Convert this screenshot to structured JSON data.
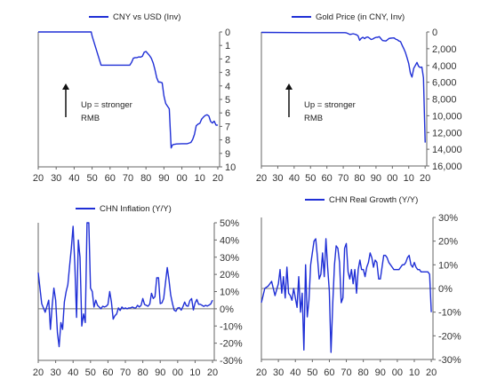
{
  "chart_data": [
    {
      "type": "line",
      "title": "",
      "legend": "CNY vs USD (Inv)",
      "legend_position": "top",
      "line_color": "#1f2fd6",
      "x_ticks": [
        "20",
        "30",
        "40",
        "50",
        "60",
        "70",
        "80",
        "90",
        "00",
        "10",
        "20"
      ],
      "y_ticks": [
        "0",
        "1",
        "2",
        "3",
        "4",
        "5",
        "6",
        "7",
        "8",
        "9",
        "10"
      ],
      "ylim": [
        0,
        10
      ],
      "y_inverted": true,
      "xlim": [
        1920,
        2021
      ],
      "grid": false,
      "annotation": {
        "line1": "Up = stronger",
        "line2": "RMB"
      },
      "x": [
        1920,
        1948,
        1949.5,
        1950,
        1955,
        1965,
        1971,
        1972,
        1973,
        1974,
        1975,
        1976,
        1977,
        1978,
        1979,
        1980,
        1981,
        1982,
        1983,
        1984,
        1985,
        1986,
        1987,
        1988,
        1989,
        1990,
        1991,
        1992,
        1993,
        1994,
        1994.5,
        1995,
        1997,
        2000,
        2003,
        2005,
        2006,
        2007,
        2008,
        2009,
        2010,
        2011,
        2012,
        2013,
        2014,
        2015,
        2016,
        2017,
        2018,
        2019,
        2020
      ],
      "values": [
        0,
        0,
        0,
        0.3,
        2.46,
        2.46,
        2.46,
        2.25,
        1.95,
        1.9,
        1.9,
        1.85,
        1.87,
        1.8,
        1.5,
        1.45,
        1.6,
        1.75,
        1.95,
        2.3,
        2.8,
        3.4,
        3.72,
        3.72,
        3.77,
        4.75,
        5.3,
        5.5,
        5.7,
        8.6,
        8.45,
        8.35,
        8.3,
        8.28,
        8.28,
        8.19,
        7.97,
        7.6,
        6.95,
        6.83,
        6.77,
        6.46,
        6.31,
        6.19,
        6.14,
        6.23,
        6.64,
        6.75,
        6.61,
        6.91,
        6.9
      ]
    },
    {
      "type": "line",
      "title": "",
      "legend": "Gold Price (in CNY, Inv)",
      "legend_position": "top",
      "line_color": "#1f2fd6",
      "x_ticks": [
        "20",
        "30",
        "40",
        "50",
        "60",
        "70",
        "80",
        "90",
        "00",
        "10",
        "20"
      ],
      "y_ticks": [
        "0",
        "2,000",
        "4,000",
        "6,000",
        "8,000",
        "10,000",
        "12,000",
        "14,000",
        "16,000"
      ],
      "ylim": [
        0,
        16000
      ],
      "y_inverted": true,
      "xlim": [
        1920,
        2021
      ],
      "grid": false,
      "annotation": {
        "line1": "Up = stronger",
        "line2": "RMB"
      },
      "x": [
        1920,
        1950,
        1965,
        1971,
        1972,
        1973,
        1974,
        1975,
        1976,
        1977,
        1978,
        1979,
        1980,
        1981,
        1982,
        1983,
        1984,
        1985,
        1986,
        1987,
        1988,
        1989,
        1990,
        1991,
        1992,
        1993,
        1994,
        1995,
        1996,
        1997,
        1998,
        1999,
        2000,
        2001,
        2002,
        2003,
        2004,
        2005,
        2006,
        2007,
        2008,
        2009,
        2010,
        2011,
        2012,
        2013,
        2014,
        2015,
        2016,
        2017,
        2018,
        2019,
        2020
      ],
      "values": [
        50,
        80,
        80,
        90,
        120,
        200,
        300,
        270,
        210,
        260,
        330,
        460,
        1000,
        760,
        640,
        790,
        650,
        600,
        730,
        900,
        850,
        720,
        650,
        640,
        560,
        800,
        1030,
        1050,
        1080,
        930,
        770,
        740,
        720,
        710,
        860,
        930,
        1080,
        1160,
        1610,
        2000,
        2480,
        3100,
        3770,
        4930,
        5380,
        4350,
        4010,
        3640,
        4100,
        4240,
        4200,
        5480,
        13200
      ]
    },
    {
      "type": "line",
      "title": "",
      "legend": "CHN Inflation (Y/Y)",
      "legend_position": "top",
      "line_color": "#1f2fd6",
      "x_ticks": [
        "20",
        "30",
        "40",
        "50",
        "60",
        "70",
        "80",
        "90",
        "00",
        "10",
        "20"
      ],
      "y_ticks": [
        "50%",
        "40%",
        "30%",
        "20%",
        "10%",
        "0%",
        "-10%",
        "-20%",
        "-30%"
      ],
      "ylim": [
        -30,
        50
      ],
      "xlim": [
        1920,
        2021
      ],
      "grid": false,
      "zero_line": true,
      "x": [
        1920,
        1922,
        1924,
        1926,
        1927,
        1928,
        1929,
        1930,
        1931,
        1932,
        1933,
        1934,
        1935,
        1936,
        1937,
        1938,
        1939,
        1940,
        1941,
        1942,
        1943,
        1944,
        1945,
        1946,
        1947,
        1948,
        1949,
        1950,
        1951,
        1952,
        1953,
        1954,
        1955,
        1956,
        1957,
        1958,
        1959,
        1960,
        1961,
        1962,
        1963,
        1964,
        1965,
        1966,
        1967,
        1968,
        1969,
        1970,
        1971,
        1972,
        1973,
        1974,
        1975,
        1976,
        1977,
        1978,
        1979,
        1980,
        1981,
        1982,
        1983,
        1984,
        1985,
        1986,
        1987,
        1988,
        1989,
        1990,
        1991,
        1992,
        1993,
        1994,
        1995,
        1996,
        1997,
        1998,
        1999,
        2000,
        2001,
        2002,
        2003,
        2004,
        2005,
        2006,
        2007,
        2008,
        2009,
        2010,
        2011,
        2012,
        2013,
        2014,
        2015,
        2016,
        2017,
        2018,
        2019,
        2020
      ],
      "values": [
        21,
        3,
        -2,
        5,
        -12,
        2,
        12,
        5,
        -14,
        -22,
        -8,
        -12,
        4,
        10,
        14,
        25,
        35,
        48,
        25,
        -5,
        40,
        30,
        -10,
        -3,
        -8,
        50,
        50,
        12,
        10,
        1,
        5,
        2,
        1,
        0,
        1.5,
        1,
        1.5,
        2.5,
        10,
        4,
        -6,
        -4,
        -3,
        0.5,
        -1,
        1,
        0,
        0.5,
        0,
        0.5,
        0.5,
        1,
        0.5,
        0.5,
        2,
        1,
        2,
        6,
        2.5,
        2,
        1.5,
        2.8,
        9,
        6,
        7,
        18,
        18,
        3,
        3.5,
        6,
        15,
        24,
        17,
        8,
        3,
        -0.8,
        -1.4,
        0.4,
        0.7,
        -0.8,
        1.2,
        3.9,
        1.8,
        1.5,
        4.8,
        5.9,
        -0.7,
        3.3,
        5.4,
        2.6,
        2.6,
        2,
        1.4,
        2,
        1.6,
        2.1,
        2.9,
        5
      ]
    },
    {
      "type": "line",
      "title": "",
      "legend": "CHN Real Growth (Y/Y)",
      "legend_position": "top",
      "line_color": "#1f2fd6",
      "x_ticks": [
        "20",
        "30",
        "40",
        "50",
        "60",
        "70",
        "80",
        "90",
        "00",
        "10",
        "20"
      ],
      "y_ticks": [
        "30%",
        "20%",
        "10%",
        "0%",
        "-10%",
        "-20%",
        "-30%"
      ],
      "ylim": [
        -30,
        30
      ],
      "xlim": [
        1920,
        2021
      ],
      "grid": false,
      "zero_line": true,
      "x": [
        1920,
        1922,
        1924,
        1926,
        1928,
        1930,
        1931,
        1932,
        1933,
        1934,
        1935,
        1936,
        1937,
        1938,
        1939,
        1940,
        1941,
        1942,
        1943,
        1944,
        1945,
        1946,
        1947,
        1948,
        1949,
        1950,
        1951,
        1952,
        1953,
        1954,
        1955,
        1956,
        1957,
        1958,
        1959,
        1960,
        1961,
        1962,
        1963,
        1964,
        1965,
        1966,
        1967,
        1968,
        1969,
        1970,
        1971,
        1972,
        1973,
        1974,
        1975,
        1976,
        1977,
        1978,
        1979,
        1980,
        1981,
        1982,
        1983,
        1984,
        1985,
        1986,
        1987,
        1988,
        1989,
        1990,
        1991,
        1992,
        1993,
        1994,
        1995,
        1996,
        1997,
        1998,
        1999,
        2000,
        2001,
        2002,
        2003,
        2004,
        2005,
        2006,
        2007,
        2008,
        2009,
        2010,
        2011,
        2012,
        2013,
        2014,
        2015,
        2016,
        2017,
        2018,
        2019,
        2020
      ],
      "values": [
        -6,
        0,
        1,
        3,
        -3,
        2,
        8,
        -2,
        5,
        -4,
        9,
        -2,
        -3,
        -5,
        0,
        -4,
        -8,
        5,
        -10,
        -2,
        -26,
        10,
        -12,
        -5,
        10,
        15,
        20,
        21,
        13,
        4,
        6,
        15,
        5,
        21,
        9,
        -1,
        -27,
        -6,
        10,
        18,
        17,
        11,
        -6,
        -4,
        17,
        19,
        7,
        4,
        8,
        2,
        8,
        -2,
        8,
        12,
        8,
        8,
        5,
        9,
        11,
        15,
        13,
        9,
        12,
        11,
        4,
        4,
        9,
        14,
        14,
        13,
        11,
        10,
        9,
        8,
        8,
        8,
        8,
        9,
        10,
        10,
        11,
        13,
        14,
        10,
        9,
        11,
        9,
        8,
        8,
        7,
        7,
        7,
        7,
        7,
        6,
        -10
      ]
    }
  ]
}
